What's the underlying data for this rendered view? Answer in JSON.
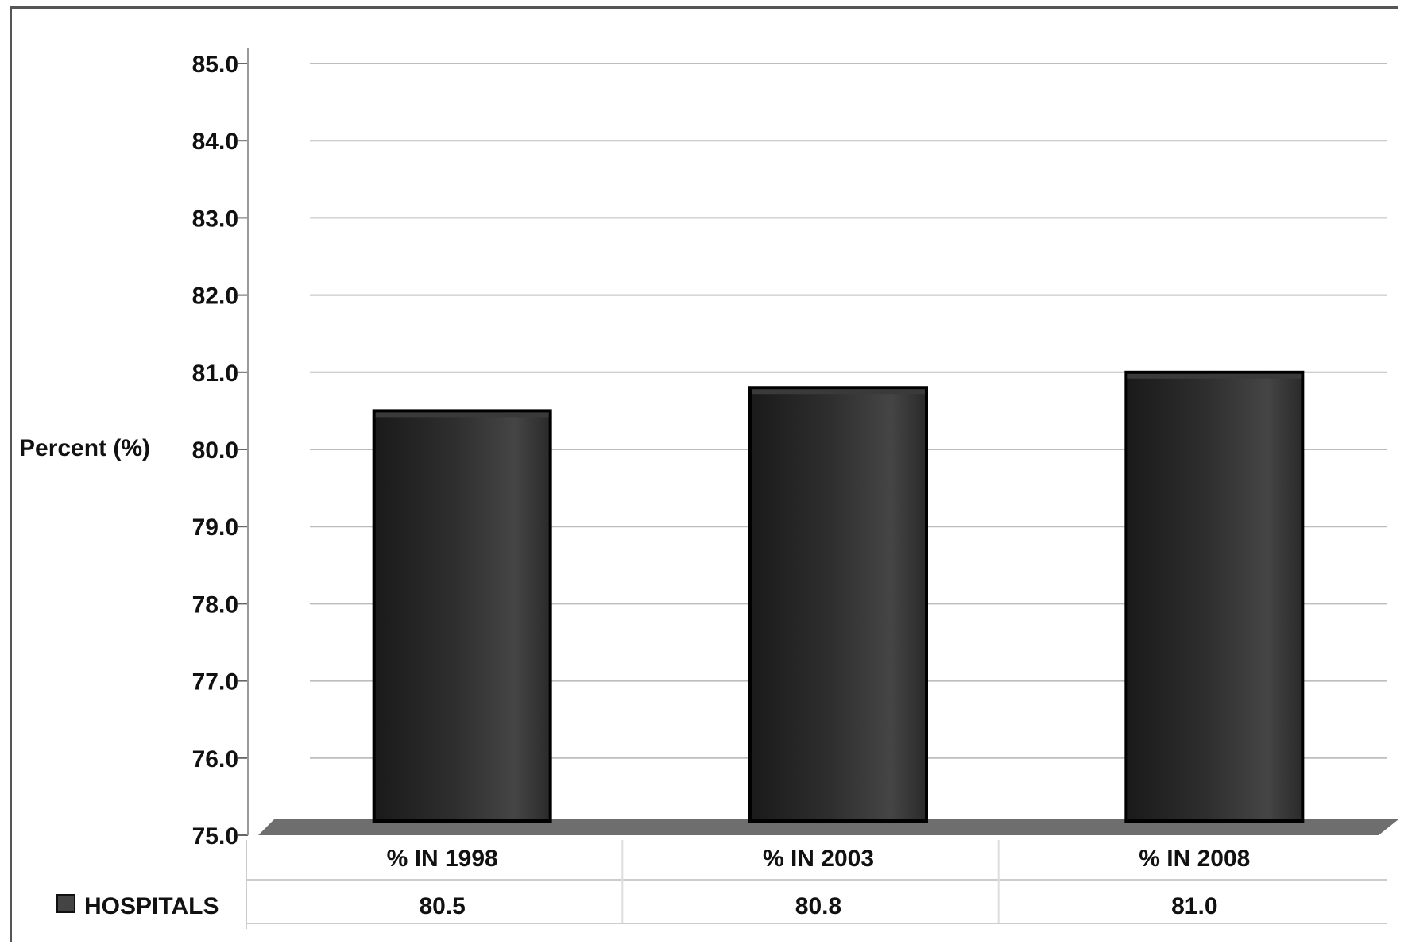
{
  "chart_data": {
    "type": "bar",
    "categories": [
      "% IN 1998",
      "% IN 2003",
      "% IN 2008"
    ],
    "series": [
      {
        "name": "HOSPITALS",
        "values": [
          80.5,
          80.8,
          81.0
        ]
      }
    ],
    "value_labels": [
      "80.5",
      "80.8",
      "81.0"
    ],
    "ylabel": "Percent (%)",
    "ylim": [
      75.0,
      85.0
    ],
    "yticks": [
      "75.0",
      "76.0",
      "77.0",
      "78.0",
      "79.0",
      "80.0",
      "81.0",
      "82.0",
      "83.0",
      "84.0",
      "85.0"
    ],
    "grid": true,
    "legend": "data-table-left",
    "colors": {
      "bar": "#2b2b2b",
      "bar_highlight": "#4a4a4a",
      "floor": "#6e6e6e",
      "grid": "#bdbdbd"
    }
  }
}
